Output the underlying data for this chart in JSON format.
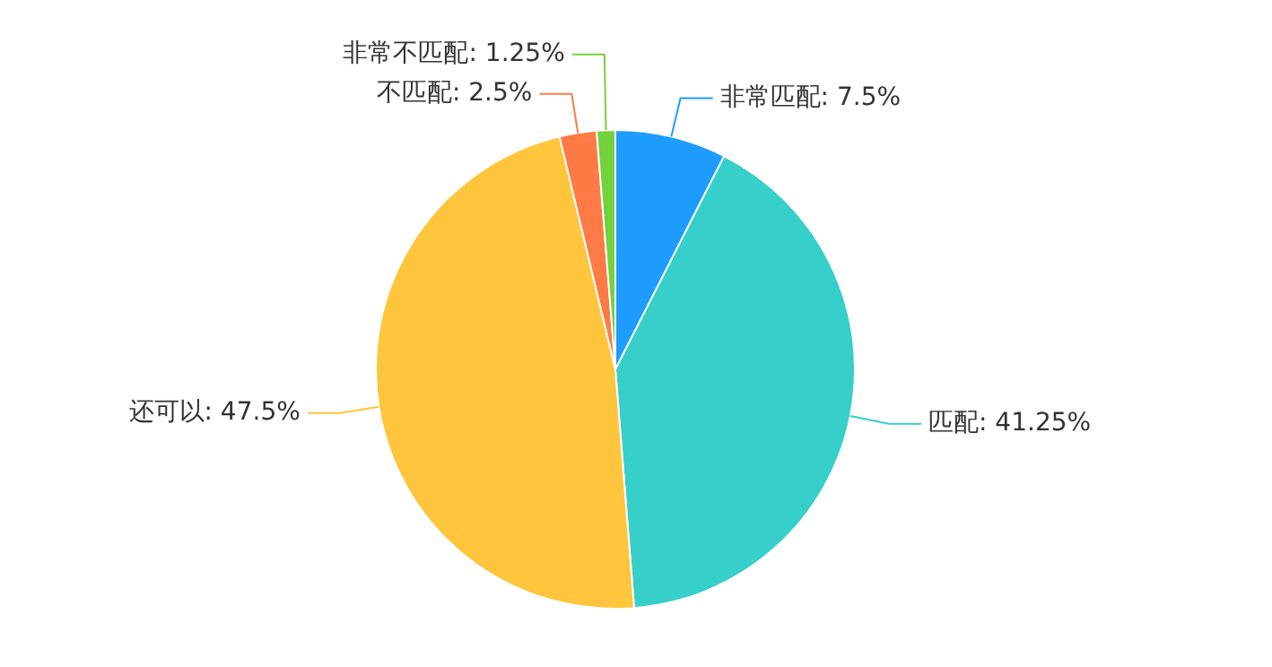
{
  "chart_data": {
    "type": "pie",
    "categories": [
      "非常匹配",
      "匹配",
      "还可以",
      "不匹配",
      "非常不匹配"
    ],
    "values": [
      7.5,
      41.25,
      47.5,
      2.5,
      1.25
    ],
    "value_labels": [
      "7.5%",
      "41.25%",
      "47.5%",
      "2.5%",
      "1.25%"
    ],
    "colors": [
      "#1e9cff",
      "#36cfc9",
      "#ffc53d",
      "#ff7a45",
      "#73d13d"
    ],
    "legend": false
  }
}
